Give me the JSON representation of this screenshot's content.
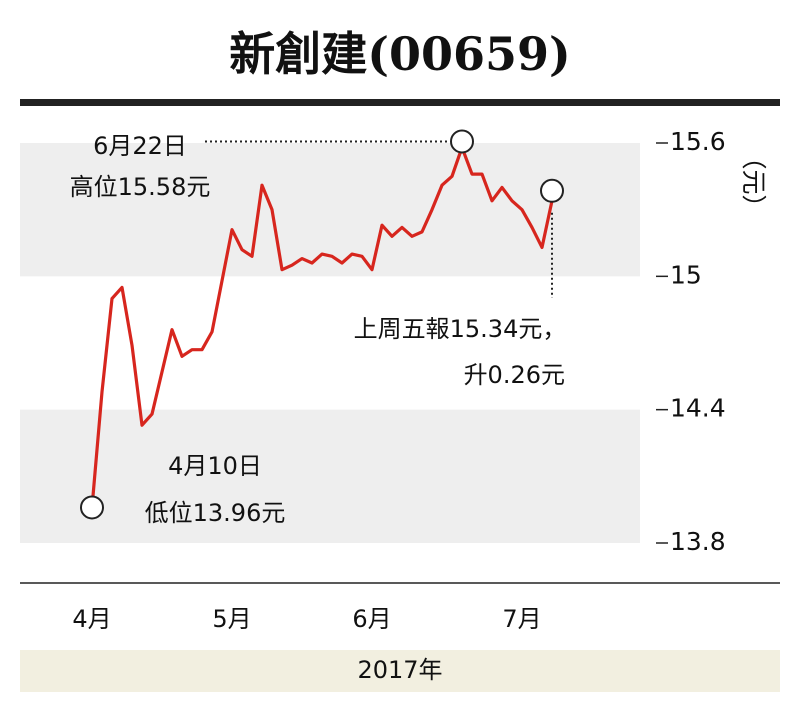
{
  "chart_data": {
    "type": "line",
    "title": "新創建(00659)",
    "y_label": "（元）",
    "x_label": "2017年",
    "categories": [
      "4月",
      null,
      null,
      null,
      null,
      null,
      null,
      null,
      null,
      null,
      null,
      null,
      null,
      null,
      "5月",
      null,
      null,
      null,
      null,
      null,
      null,
      null,
      null,
      null,
      null,
      null,
      null,
      null,
      "6月",
      null,
      null,
      null,
      null,
      null,
      null,
      null,
      null,
      null,
      null,
      null,
      null,
      null,
      null,
      "7月",
      null,
      null,
      null
    ],
    "series": [
      {
        "name": "新創建",
        "color": "#d7261e",
        "values": [
          13.96,
          14.48,
          14.9,
          14.95,
          14.69,
          14.33,
          14.38,
          14.57,
          14.76,
          14.64,
          14.67,
          14.67,
          14.75,
          14.98,
          15.21,
          15.12,
          15.09,
          15.41,
          15.3,
          15.03,
          15.05,
          15.08,
          15.06,
          15.1,
          15.09,
          15.06,
          15.1,
          15.09,
          15.03,
          15.23,
          15.18,
          15.22,
          15.18,
          15.2,
          15.3,
          15.41,
          15.45,
          15.58,
          15.46,
          15.46,
          15.34,
          15.4,
          15.34,
          15.3,
          15.22,
          15.13,
          15.34
        ]
      }
    ],
    "ylim": [
      13.8,
      15.6
    ],
    "yticks": [
      15.6,
      15,
      14.4,
      13.8
    ],
    "grid": "bands",
    "annotations": [
      [
        "6月22日",
        "高位15.58元"
      ],
      [
        "4月10日",
        "低位13.96元"
      ],
      [
        "上周五報15.34元，",
        "升0.26元"
      ]
    ]
  }
}
